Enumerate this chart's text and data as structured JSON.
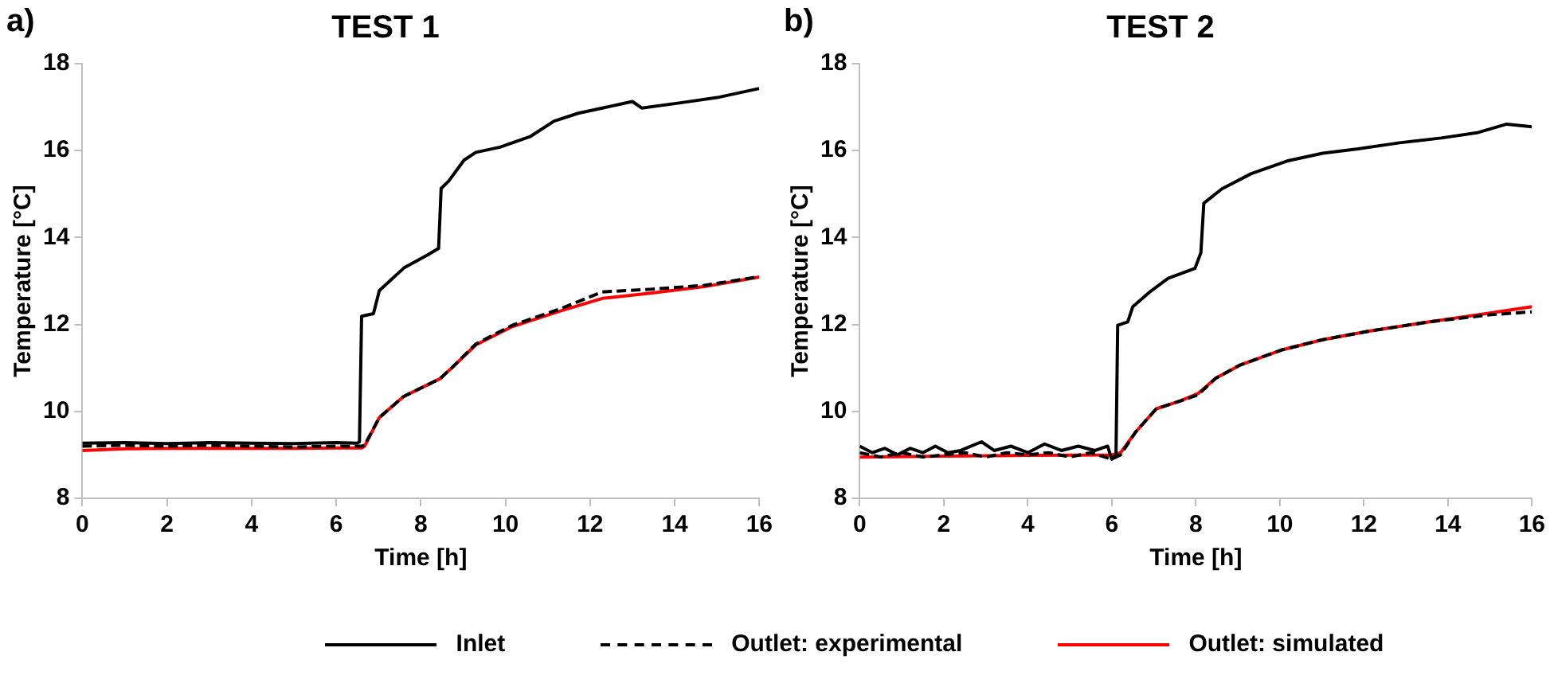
{
  "chart_data": [
    {
      "type": "line",
      "title": "TEST 1",
      "xlabel": "Time [h]",
      "ylabel": "Temperature [°C]",
      "annotations": [
        "a)"
      ],
      "xlim": [
        0,
        16
      ],
      "xticks": [
        0,
        2,
        4,
        6,
        8,
        10,
        12,
        14,
        16
      ],
      "ylim": [
        8,
        18
      ],
      "yticks": [
        8,
        10,
        12,
        14,
        16,
        18
      ],
      "grid": false,
      "legend": "bottom",
      "marker": "none",
      "series": [
        {
          "name": "Inlet",
          "color": "#000000",
          "line_style": "solid",
          "x": [
            0,
            1,
            2,
            3,
            4,
            5,
            6,
            6.5,
            6.55,
            6.6,
            6.88,
            7.02,
            7.6,
            8.16,
            8.42,
            8.48,
            8.66,
            9.02,
            9.3,
            9.87,
            10.58,
            11.15,
            11.72,
            12.29,
            13.0,
            13.22,
            14.14,
            15.0,
            16
          ],
          "values": [
            9.27,
            9.28,
            9.26,
            9.28,
            9.27,
            9.26,
            9.28,
            9.27,
            9.3,
            12.19,
            12.25,
            12.78,
            13.3,
            13.6,
            13.75,
            15.13,
            15.3,
            15.78,
            15.96,
            16.08,
            16.32,
            16.68,
            16.86,
            16.98,
            17.13,
            16.98,
            17.1,
            17.22,
            17.43
          ]
        },
        {
          "name": "Outlet: experimental",
          "color": "#000000",
          "line_style": "dashed",
          "x": [
            0,
            1,
            2,
            3,
            4,
            5,
            6,
            6.6,
            6.67,
            7.02,
            7.59,
            8.45,
            8.73,
            9.3,
            10.16,
            11.3,
            12.29,
            13.43,
            14.7,
            16
          ],
          "values": [
            9.2,
            9.22,
            9.2,
            9.22,
            9.2,
            9.18,
            9.2,
            9.2,
            9.22,
            9.86,
            10.34,
            10.75,
            11.0,
            11.55,
            11.98,
            12.36,
            12.75,
            12.81,
            12.9,
            13.1
          ]
        },
        {
          "name": "Outlet: simulated",
          "color": "#ff0000",
          "line_style": "solid",
          "x": [
            0,
            1,
            2,
            3,
            4,
            5,
            6,
            6.6,
            6.67,
            7.02,
            7.59,
            8.45,
            8.73,
            9.3,
            10.16,
            11.3,
            12.29,
            13.43,
            14.7,
            16
          ],
          "values": [
            9.1,
            9.14,
            9.15,
            9.15,
            9.15,
            9.15,
            9.16,
            9.16,
            9.2,
            9.86,
            10.34,
            10.75,
            11.0,
            11.53,
            11.95,
            12.31,
            12.6,
            12.72,
            12.87,
            13.09
          ]
        }
      ]
    },
    {
      "type": "line",
      "title": "TEST 2",
      "xlabel": "Time [h]",
      "ylabel": "Temperature [°C]",
      "annotations": [
        "b)"
      ],
      "xlim": [
        0,
        16
      ],
      "xticks": [
        0,
        2,
        4,
        6,
        8,
        10,
        12,
        14,
        16
      ],
      "ylim": [
        8,
        18
      ],
      "yticks": [
        8,
        10,
        12,
        14,
        16,
        18
      ],
      "grid": false,
      "legend": "bottom",
      "marker": "none",
      "series": [
        {
          "name": "Inlet",
          "color": "#000000",
          "line_style": "solid",
          "x": [
            0,
            0.3,
            0.6,
            0.9,
            1.2,
            1.5,
            1.8,
            2.1,
            2.4,
            2.9,
            3.2,
            3.6,
            4.0,
            4.4,
            4.8,
            5.2,
            5.6,
            5.9,
            6.0,
            6.1,
            6.14,
            6.38,
            6.5,
            6.92,
            7.34,
            7.98,
            8.12,
            8.19,
            8.62,
            9.32,
            10.17,
            11.02,
            11.86,
            12.85,
            13.84,
            14.69,
            15.4,
            16
          ],
          "values": [
            9.2,
            9.05,
            9.15,
            9.0,
            9.15,
            9.05,
            9.2,
            9.05,
            9.1,
            9.3,
            9.1,
            9.2,
            9.05,
            9.25,
            9.1,
            9.2,
            9.1,
            9.2,
            8.9,
            9.0,
            11.98,
            12.06,
            12.41,
            12.76,
            13.06,
            13.29,
            13.65,
            14.79,
            15.12,
            15.47,
            15.76,
            15.94,
            16.04,
            16.18,
            16.29,
            16.41,
            16.61,
            16.55
          ]
        },
        {
          "name": "Outlet: experimental",
          "color": "#000000",
          "line_style": "dashed",
          "x": [
            0,
            0.5,
            1,
            1.5,
            2,
            2.5,
            3,
            3.5,
            4,
            4.5,
            5,
            5.5,
            6,
            6.21,
            6.57,
            7.06,
            7.63,
            8.05,
            8.47,
            9.04,
            10.03,
            11.02,
            12.15,
            13.56,
            14.97,
            16
          ],
          "values": [
            9.05,
            8.95,
            9.05,
            8.95,
            9.0,
            9.05,
            8.95,
            9.05,
            9.0,
            9.05,
            8.95,
            9.05,
            8.9,
            9.0,
            9.53,
            10.06,
            10.24,
            10.38,
            10.76,
            11.06,
            11.41,
            11.65,
            11.85,
            12.06,
            12.22,
            12.29
          ]
        },
        {
          "name": "Outlet: simulated",
          "color": "#ff0000",
          "line_style": "solid",
          "x": [
            0,
            2,
            4,
            6,
            6.21,
            6.57,
            7.06,
            7.63,
            8.05,
            8.47,
            9.04,
            10.03,
            11.02,
            12.15,
            13.56,
            14.97,
            16
          ],
          "values": [
            8.95,
            8.97,
            8.99,
            9.0,
            9.05,
            9.53,
            10.06,
            10.24,
            10.41,
            10.76,
            11.06,
            11.41,
            11.65,
            11.85,
            12.06,
            12.26,
            12.41
          ]
        }
      ]
    }
  ]
}
